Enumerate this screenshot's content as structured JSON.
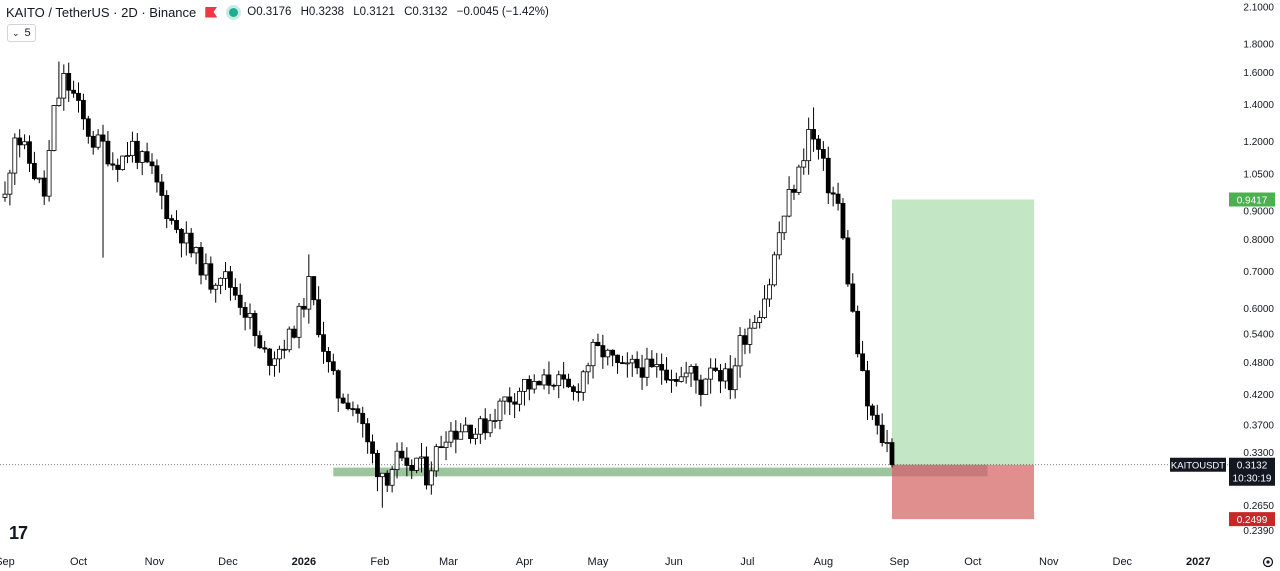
{
  "header": {
    "title": "KAITO / TetherUS · 2D · Binance",
    "open": "O0.3176",
    "high": "H0.3238",
    "low": "L0.3121",
    "close": "C0.3132",
    "change": "−0.0045 (−1.42%)",
    "indicator_count": "5"
  },
  "icons": {
    "collapse": "chevron-down-icon",
    "settings": "gear-icon",
    "logo": "tradingview-logo",
    "flag": "flag-icon",
    "market_status": "green-dot-icon"
  },
  "logo_text": "17",
  "colors": {
    "up": "#ffffff",
    "down": "#000000",
    "wick": "#000000",
    "support_zone": "#9cc59d",
    "target_zone": "#c3e6c4",
    "stop_zone": "#e08e8e",
    "target_label": "#4caf50",
    "stop_label": "#c62828"
  },
  "chart_data": {
    "type": "candlestick",
    "scale": "log",
    "ylim": [
      0.233,
      2.12
    ],
    "x_start": "2025-09-01",
    "x_end": "2027-01-16",
    "yticks": [
      2.1,
      1.8,
      1.6,
      1.4,
      1.2,
      1.05,
      0.9,
      0.8,
      0.7,
      0.6,
      0.54,
      0.48,
      0.42,
      0.37,
      0.33,
      0.265,
      0.239
    ],
    "ytick_labels": [
      "2.1000",
      "1.8000",
      "1.6000",
      "1.4000",
      "1.2000",
      "1.0500",
      "0.9000",
      "0.8000",
      "0.7000",
      "0.6000",
      "0.5400",
      "0.4800",
      "0.4200",
      "0.3700",
      "0.3300",
      "0.2650",
      "0.2390"
    ],
    "xticks": [
      {
        "label": "Sep",
        "date": "2025-09-01"
      },
      {
        "label": "Oct",
        "date": "2025-10-01"
      },
      {
        "label": "Nov",
        "date": "2025-11-01"
      },
      {
        "label": "Dec",
        "date": "2025-12-01"
      },
      {
        "label": "2026",
        "date": "2026-01-01",
        "bold": true
      },
      {
        "label": "Feb",
        "date": "2026-02-01"
      },
      {
        "label": "Mar",
        "date": "2026-03-01"
      },
      {
        "label": "Apr",
        "date": "2026-04-01"
      },
      {
        "label": "May",
        "date": "2026-05-01"
      },
      {
        "label": "Jun",
        "date": "2026-06-01"
      },
      {
        "label": "Jul",
        "date": "2026-07-01"
      },
      {
        "label": "Aug",
        "date": "2026-08-01"
      },
      {
        "label": "Sep",
        "date": "2026-09-01"
      },
      {
        "label": "Oct",
        "date": "2026-10-01"
      },
      {
        "label": "Nov",
        "date": "2026-11-01"
      },
      {
        "label": "Dec",
        "date": "2026-12-01"
      },
      {
        "label": "2027",
        "date": "2027-01-01",
        "bold": true
      }
    ],
    "path": [
      [
        "2025-09-01",
        0.95
      ],
      [
        "2025-09-05",
        1.25
      ],
      [
        "2025-09-09",
        1.15
      ],
      [
        "2025-09-13",
        1.05
      ],
      [
        "2025-09-17",
        0.96
      ],
      [
        "2025-09-21",
        1.35
      ],
      [
        "2025-09-25",
        1.55
      ],
      [
        "2025-09-29",
        1.45
      ],
      [
        "2025-10-03",
        1.3
      ],
      [
        "2025-10-07",
        1.2
      ],
      [
        "2025-10-11",
        1.18
      ],
      [
        "2025-10-15",
        1.1
      ],
      [
        "2025-10-19",
        1.12
      ],
      [
        "2025-10-23",
        1.18
      ],
      [
        "2025-10-27",
        1.1
      ],
      [
        "2025-10-31",
        1.05
      ],
      [
        "2025-11-04",
        0.95
      ],
      [
        "2025-11-08",
        0.86
      ],
      [
        "2025-11-12",
        0.82
      ],
      [
        "2025-11-16",
        0.76
      ],
      [
        "2025-11-20",
        0.72
      ],
      [
        "2025-11-24",
        0.67
      ],
      [
        "2025-11-28",
        0.7
      ],
      [
        "2025-12-02",
        0.66
      ],
      [
        "2025-12-06",
        0.62
      ],
      [
        "2025-12-10",
        0.57
      ],
      [
        "2025-12-14",
        0.5
      ],
      [
        "2025-12-18",
        0.49
      ],
      [
        "2025-12-22",
        0.51
      ],
      [
        "2025-12-26",
        0.53
      ],
      [
        "2025-12-30",
        0.58
      ],
      [
        "2026-01-03",
        0.66
      ],
      [
        "2026-01-07",
        0.56
      ],
      [
        "2026-01-11",
        0.47
      ],
      [
        "2026-01-15",
        0.42
      ],
      [
        "2026-01-19",
        0.41
      ],
      [
        "2026-01-23",
        0.39
      ],
      [
        "2026-01-27",
        0.34
      ],
      [
        "2026-01-31",
        0.31
      ],
      [
        "2026-02-04",
        0.3
      ],
      [
        "2026-02-08",
        0.32
      ],
      [
        "2026-02-12",
        0.3
      ],
      [
        "2026-02-16",
        0.32
      ],
      [
        "2026-02-20",
        0.3
      ],
      [
        "2026-02-24",
        0.33
      ],
      [
        "2026-02-28",
        0.36
      ],
      [
        "2026-03-04",
        0.36
      ],
      [
        "2026-03-08",
        0.37
      ],
      [
        "2026-03-12",
        0.36
      ],
      [
        "2026-03-16",
        0.37
      ],
      [
        "2026-03-20",
        0.39
      ],
      [
        "2026-03-24",
        0.41
      ],
      [
        "2026-03-28",
        0.42
      ],
      [
        "2026-04-01",
        0.44
      ],
      [
        "2026-04-05",
        0.43
      ],
      [
        "2026-04-09",
        0.44
      ],
      [
        "2026-04-13",
        0.45
      ],
      [
        "2026-04-17",
        0.43
      ],
      [
        "2026-04-21",
        0.42
      ],
      [
        "2026-04-25",
        0.46
      ],
      [
        "2026-04-29",
        0.5
      ],
      [
        "2026-05-03",
        0.5
      ],
      [
        "2026-05-07",
        0.48
      ],
      [
        "2026-05-11",
        0.46
      ],
      [
        "2026-05-15",
        0.47
      ],
      [
        "2026-05-19",
        0.47
      ],
      [
        "2026-05-23",
        0.46
      ],
      [
        "2026-05-27",
        0.47
      ],
      [
        "2026-05-31",
        0.46
      ],
      [
        "2026-06-04",
        0.45
      ],
      [
        "2026-06-08",
        0.46
      ],
      [
        "2026-06-12",
        0.43
      ],
      [
        "2026-06-16",
        0.48
      ],
      [
        "2026-06-20",
        0.46
      ],
      [
        "2026-06-24",
        0.44
      ],
      [
        "2026-06-28",
        0.52
      ],
      [
        "2026-07-02",
        0.56
      ],
      [
        "2026-07-06",
        0.6
      ],
      [
        "2026-07-10",
        0.67
      ],
      [
        "2026-07-14",
        0.82
      ],
      [
        "2026-07-18",
        0.95
      ],
      [
        "2026-07-22",
        1.05
      ],
      [
        "2026-07-26",
        1.25
      ],
      [
        "2026-07-30",
        1.15
      ],
      [
        "2026-08-03",
        1.0
      ],
      [
        "2026-08-07",
        0.92
      ],
      [
        "2026-08-11",
        0.68
      ],
      [
        "2026-08-15",
        0.5
      ],
      [
        "2026-08-19",
        0.4
      ],
      [
        "2026-08-23",
        0.36
      ],
      [
        "2026-08-27",
        0.34
      ],
      [
        "2026-08-29",
        0.3132
      ]
    ],
    "spikes": [
      {
        "date": "2025-09-23",
        "high": 1.67
      },
      {
        "date": "2025-10-11",
        "low": 0.74
      },
      {
        "date": "2026-01-03",
        "high": 0.75
      },
      {
        "date": "2026-02-01",
        "low": 0.262
      },
      {
        "date": "2026-07-28",
        "high": 1.38
      },
      {
        "date": "2026-07-16",
        "high": 0.86
      }
    ],
    "support_zone": {
      "from": "2026-01-13",
      "to": "2026-08-29",
      "top": 0.3095,
      "bottom": 0.2985
    },
    "position": {
      "from": "2026-08-29",
      "to": "2026-10-26",
      "entry": 0.3132,
      "target": 0.9417,
      "stop": 0.2499,
      "overlay_to": "2026-10-07"
    },
    "last_price": {
      "symbol": "KAITOUSDT",
      "price": "0.3132",
      "countdown": "10:30:19"
    },
    "target_label": "0.9417",
    "stop_label": "0.2499"
  }
}
